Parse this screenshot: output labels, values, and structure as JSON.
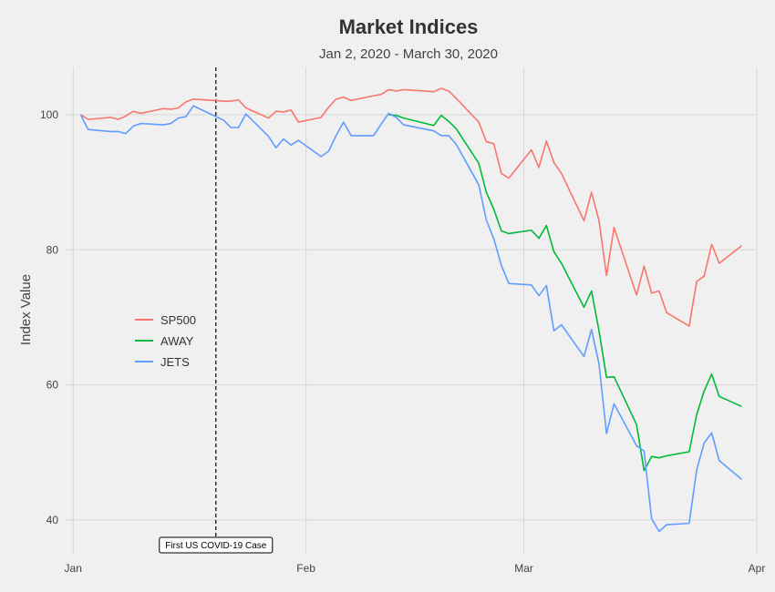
{
  "chart_data": {
    "type": "line",
    "title": "Market Indices",
    "subtitle": "Jan 2, 2020 - March 30, 2020",
    "xlabel": "",
    "ylabel": "Index Value",
    "x_type": "date",
    "xlim": [
      "2019-12-31",
      "2020-04-01"
    ],
    "ylim": [
      35,
      107
    ],
    "x_ticks": [
      {
        "date": "2020-01-01",
        "label": "Jan"
      },
      {
        "date": "2020-02-01",
        "label": "Feb"
      },
      {
        "date": "2020-03-01",
        "label": "Mar"
      },
      {
        "date": "2020-04-01",
        "label": "Apr"
      }
    ],
    "y_ticks": [
      40,
      60,
      80,
      100
    ],
    "grid": true,
    "legend_position": "left",
    "colors": {
      "SP500": "#F8766D",
      "AWAY": "#00BA38",
      "JETS": "#619CFF"
    },
    "annotation": {
      "date": "2020-01-20",
      "label": "First US COVID-19 Case",
      "style": "dashed-vline"
    },
    "series": [
      {
        "name": "SP500",
        "color": "#F8766D",
        "points": [
          [
            "2020-01-02",
            100.0
          ],
          [
            "2020-01-03",
            99.3
          ],
          [
            "2020-01-06",
            99.6
          ],
          [
            "2020-01-07",
            99.3
          ],
          [
            "2020-01-08",
            99.8
          ],
          [
            "2020-01-09",
            100.5
          ],
          [
            "2020-01-10",
            100.2
          ],
          [
            "2020-01-13",
            100.9
          ],
          [
            "2020-01-14",
            100.8
          ],
          [
            "2020-01-15",
            101.0
          ],
          [
            "2020-01-16",
            101.9
          ],
          [
            "2020-01-17",
            102.3
          ],
          [
            "2020-01-21",
            102.0
          ],
          [
            "2020-01-22",
            102.0
          ],
          [
            "2020-01-23",
            102.2
          ],
          [
            "2020-01-24",
            101.0
          ],
          [
            "2020-01-27",
            99.5
          ],
          [
            "2020-01-28",
            100.5
          ],
          [
            "2020-01-29",
            100.4
          ],
          [
            "2020-01-30",
            100.7
          ],
          [
            "2020-01-31",
            98.9
          ],
          [
            "2020-02-03",
            99.6
          ],
          [
            "2020-02-04",
            101.1
          ],
          [
            "2020-02-05",
            102.3
          ],
          [
            "2020-02-06",
            102.6
          ],
          [
            "2020-02-07",
            102.1
          ],
          [
            "2020-02-10",
            102.8
          ],
          [
            "2020-02-11",
            103.0
          ],
          [
            "2020-02-12",
            103.7
          ],
          [
            "2020-02-13",
            103.5
          ],
          [
            "2020-02-14",
            103.7
          ],
          [
            "2020-02-18",
            103.4
          ],
          [
            "2020-02-19",
            103.9
          ],
          [
            "2020-02-20",
            103.5
          ],
          [
            "2020-02-21",
            102.4
          ],
          [
            "2020-02-24",
            98.9
          ],
          [
            "2020-02-25",
            96.0
          ],
          [
            "2020-02-26",
            95.7
          ],
          [
            "2020-02-27",
            91.3
          ],
          [
            "2020-02-28",
            90.6
          ],
          [
            "2020-03-02",
            94.8
          ],
          [
            "2020-03-03",
            92.2
          ],
          [
            "2020-03-04",
            96.1
          ],
          [
            "2020-03-05",
            92.9
          ],
          [
            "2020-03-06",
            91.3
          ],
          [
            "2020-03-09",
            84.3
          ],
          [
            "2020-03-10",
            88.5
          ],
          [
            "2020-03-11",
            84.3
          ],
          [
            "2020-03-12",
            76.2
          ],
          [
            "2020-03-13",
            83.3
          ],
          [
            "2020-03-16",
            73.3
          ],
          [
            "2020-03-17",
            77.6
          ],
          [
            "2020-03-18",
            73.6
          ],
          [
            "2020-03-19",
            73.9
          ],
          [
            "2020-03-20",
            70.7
          ],
          [
            "2020-03-23",
            68.7
          ],
          [
            "2020-03-24",
            75.3
          ],
          [
            "2020-03-25",
            76.1
          ],
          [
            "2020-03-26",
            80.8
          ],
          [
            "2020-03-27",
            78.0
          ],
          [
            "2020-03-30",
            80.6
          ]
        ]
      },
      {
        "name": "AWAY",
        "color": "#00BA38",
        "points": [
          [
            "2020-02-12",
            100.0
          ],
          [
            "2020-02-13",
            99.9
          ],
          [
            "2020-02-14",
            99.5
          ],
          [
            "2020-02-18",
            98.4
          ],
          [
            "2020-02-19",
            99.9
          ],
          [
            "2020-02-20",
            99.0
          ],
          [
            "2020-02-21",
            97.9
          ],
          [
            "2020-02-24",
            92.8
          ],
          [
            "2020-02-25",
            88.5
          ],
          [
            "2020-02-26",
            86.0
          ],
          [
            "2020-02-27",
            82.8
          ],
          [
            "2020-02-28",
            82.4
          ],
          [
            "2020-03-02",
            82.9
          ],
          [
            "2020-03-03",
            81.7
          ],
          [
            "2020-03-04",
            83.6
          ],
          [
            "2020-03-05",
            79.7
          ],
          [
            "2020-03-06",
            78.0
          ],
          [
            "2020-03-09",
            71.5
          ],
          [
            "2020-03-10",
            73.9
          ],
          [
            "2020-03-11",
            68.0
          ],
          [
            "2020-03-12",
            61.1
          ],
          [
            "2020-03-13",
            61.2
          ],
          [
            "2020-03-16",
            54.1
          ],
          [
            "2020-03-17",
            47.3
          ],
          [
            "2020-03-18",
            49.4
          ],
          [
            "2020-03-19",
            49.2
          ],
          [
            "2020-03-20",
            49.5
          ],
          [
            "2020-03-23",
            50.1
          ],
          [
            "2020-03-24",
            55.6
          ],
          [
            "2020-03-25",
            59.1
          ],
          [
            "2020-03-26",
            61.6
          ],
          [
            "2020-03-27",
            58.3
          ],
          [
            "2020-03-30",
            56.8
          ]
        ]
      },
      {
        "name": "JETS",
        "color": "#619CFF",
        "points": [
          [
            "2020-01-02",
            100.0
          ],
          [
            "2020-01-03",
            97.8
          ],
          [
            "2020-01-06",
            97.5
          ],
          [
            "2020-01-07",
            97.5
          ],
          [
            "2020-01-08",
            97.2
          ],
          [
            "2020-01-09",
            98.3
          ],
          [
            "2020-01-10",
            98.7
          ],
          [
            "2020-01-13",
            98.5
          ],
          [
            "2020-01-14",
            98.7
          ],
          [
            "2020-01-15",
            99.5
          ],
          [
            "2020-01-16",
            99.7
          ],
          [
            "2020-01-17",
            101.3
          ],
          [
            "2020-01-21",
            99.2
          ],
          [
            "2020-01-22",
            98.1
          ],
          [
            "2020-01-23",
            98.1
          ],
          [
            "2020-01-24",
            100.1
          ],
          [
            "2020-01-27",
            96.8
          ],
          [
            "2020-01-28",
            95.1
          ],
          [
            "2020-01-29",
            96.4
          ],
          [
            "2020-01-30",
            95.5
          ],
          [
            "2020-01-31",
            96.2
          ],
          [
            "2020-02-03",
            93.8
          ],
          [
            "2020-02-04",
            94.6
          ],
          [
            "2020-02-05",
            96.9
          ],
          [
            "2020-02-06",
            98.9
          ],
          [
            "2020-02-07",
            96.9
          ],
          [
            "2020-02-10",
            96.9
          ],
          [
            "2020-02-11",
            98.6
          ],
          [
            "2020-02-12",
            100.2
          ],
          [
            "2020-02-13",
            99.6
          ],
          [
            "2020-02-14",
            98.5
          ],
          [
            "2020-02-18",
            97.6
          ],
          [
            "2020-02-19",
            96.9
          ],
          [
            "2020-02-20",
            96.9
          ],
          [
            "2020-02-21",
            95.6
          ],
          [
            "2020-02-24",
            89.6
          ],
          [
            "2020-02-25",
            84.4
          ],
          [
            "2020-02-26",
            81.6
          ],
          [
            "2020-02-27",
            77.7
          ],
          [
            "2020-02-28",
            75.0
          ],
          [
            "2020-03-02",
            74.8
          ],
          [
            "2020-03-03",
            73.2
          ],
          [
            "2020-03-04",
            74.7
          ],
          [
            "2020-03-05",
            68.0
          ],
          [
            "2020-03-06",
            68.9
          ],
          [
            "2020-03-09",
            64.2
          ],
          [
            "2020-03-10",
            68.2
          ],
          [
            "2020-03-11",
            63.1
          ],
          [
            "2020-03-12",
            52.8
          ],
          [
            "2020-03-13",
            57.2
          ],
          [
            "2020-03-16",
            51.0
          ],
          [
            "2020-03-17",
            50.2
          ],
          [
            "2020-03-18",
            40.2
          ],
          [
            "2020-03-19",
            38.3
          ],
          [
            "2020-03-20",
            39.3
          ],
          [
            "2020-03-23",
            39.5
          ],
          [
            "2020-03-24",
            47.4
          ],
          [
            "2020-03-25",
            51.4
          ],
          [
            "2020-03-26",
            52.9
          ],
          [
            "2020-03-27",
            48.8
          ],
          [
            "2020-03-30",
            46.0
          ]
        ]
      }
    ]
  }
}
